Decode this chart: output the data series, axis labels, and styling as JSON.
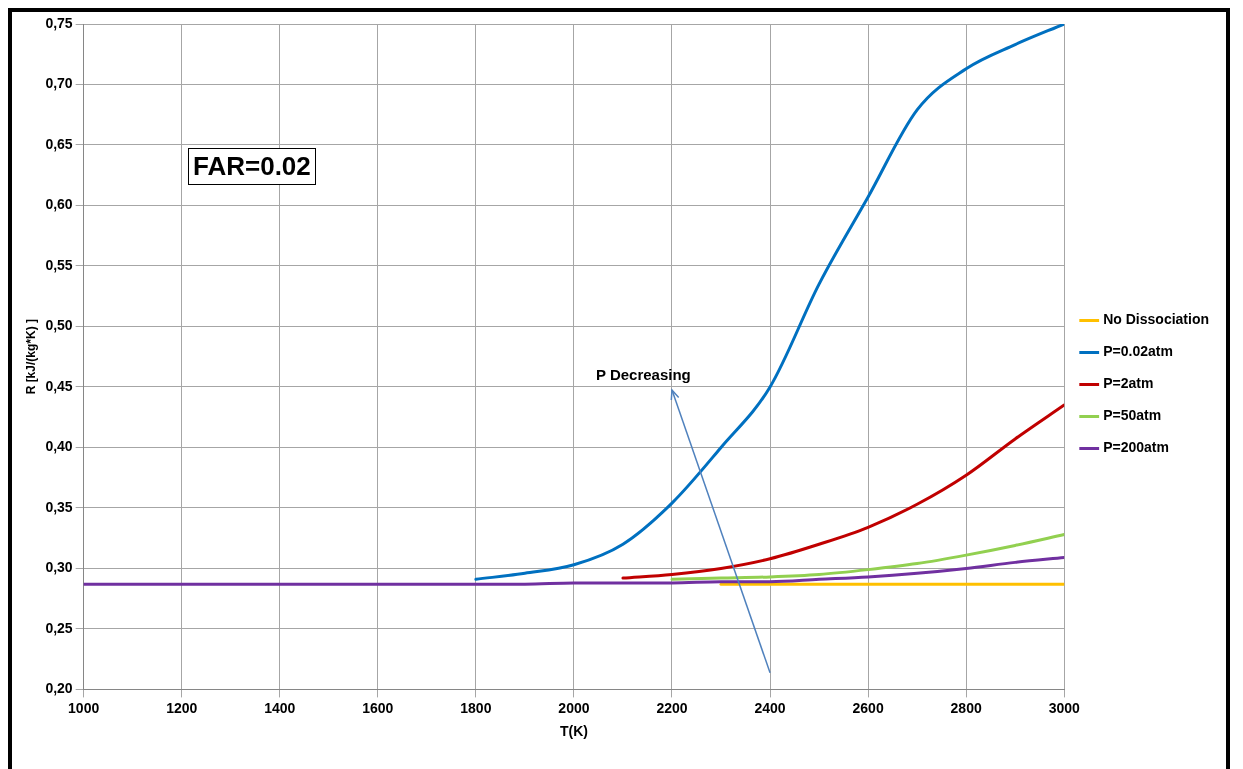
{
  "chart_data": {
    "type": "line",
    "xlabel": "T(K)",
    "ylabel": "R [kJ/(kg*K) ]",
    "annotations": [
      "FAR=0.02",
      "P Decreasing"
    ],
    "x": [
      1000,
      1200,
      1400,
      1600,
      1700,
      1800,
      1900,
      2000,
      2100,
      2200,
      2300,
      2400,
      2500,
      2600,
      2700,
      2800,
      2900,
      3000
    ],
    "series": [
      {
        "name": "No Dissociation",
        "color": "#ffc000",
        "values": [
          null,
          null,
          null,
          null,
          null,
          null,
          null,
          null,
          null,
          null,
          0.287,
          0.287,
          0.287,
          0.287,
          0.287,
          0.287,
          0.287,
          0.287
        ]
      },
      {
        "name": "P=0.02atm",
        "color": "#0070c0",
        "values": [
          null,
          null,
          null,
          null,
          null,
          0.291,
          0.296,
          0.303,
          0.32,
          0.354,
          0.4,
          0.45,
          0.535,
          0.607,
          0.679,
          0.713,
          0.733,
          0.75
        ]
      },
      {
        "name": "P=2atm",
        "color": "#c00000",
        "values": [
          null,
          null,
          null,
          null,
          null,
          null,
          null,
          null,
          0.292,
          0.295,
          0.3,
          0.308,
          0.32,
          0.334,
          0.353,
          0.377,
          0.407,
          0.435
        ]
      },
      {
        "name": "P=50atm",
        "color": "#92d050",
        "values": [
          null,
          null,
          null,
          null,
          null,
          null,
          null,
          null,
          null,
          0.291,
          0.292,
          0.293,
          0.295,
          0.299,
          0.304,
          0.311,
          0.319,
          0.328
        ]
      },
      {
        "name": "P=200atm",
        "color": "#7030a0",
        "values": [
          0.287,
          0.287,
          0.287,
          0.287,
          0.287,
          0.287,
          0.287,
          0.288,
          0.288,
          0.288,
          0.289,
          0.289,
          0.291,
          0.293,
          0.296,
          0.3,
          0.305,
          0.309
        ]
      }
    ],
    "xlim": [
      1000,
      3000
    ],
    "xticks": [
      1000,
      1200,
      1400,
      1600,
      1800,
      2000,
      2200,
      2400,
      2600,
      2800,
      3000
    ],
    "ylim": [
      0.2,
      0.75
    ],
    "yticks": [
      {
        "value": 0.2,
        "label": "0,20"
      },
      {
        "value": 0.25,
        "label": "0,25"
      },
      {
        "value": 0.3,
        "label": "0,30"
      },
      {
        "value": 0.35,
        "label": "0,35"
      },
      {
        "value": 0.4,
        "label": "0,40"
      },
      {
        "value": 0.45,
        "label": "0,45"
      },
      {
        "value": 0.5,
        "label": "0,50"
      },
      {
        "value": 0.55,
        "label": "0,55"
      },
      {
        "value": 0.6,
        "label": "0,60"
      },
      {
        "value": 0.65,
        "label": "0,65"
      },
      {
        "value": 0.7,
        "label": "0,70"
      },
      {
        "value": 0.75,
        "label": "0,75"
      }
    ],
    "grid": true,
    "legend": "right",
    "marker": "none",
    "line_style": "solid"
  }
}
